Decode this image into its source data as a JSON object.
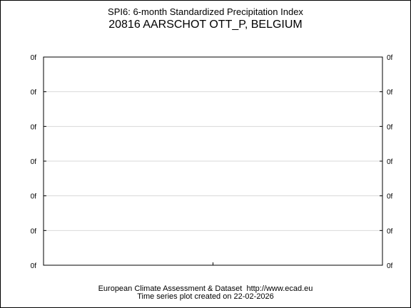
{
  "chart_data": {
    "type": "line",
    "title": "SPI6: 6-month Standardized Precipitation Index",
    "subtitle": "20816 AARSCHOT OTT_P, BELGIUM",
    "xlabel": "",
    "ylabel": "",
    "x": [],
    "series": [],
    "y_ticks": [
      "0f",
      "0f",
      "0f",
      "0f",
      "0f",
      "0f",
      "0f"
    ],
    "y_ticks_right": [
      "0f",
      "0f",
      "0f",
      "0f",
      "0f",
      "0f",
      "0f"
    ],
    "grid": true,
    "legend": "none"
  },
  "footer": {
    "line1": "European Climate Assessment & Dataset  http://www.ecad.eu",
    "line2": "Time series plot created on 22-02-2026"
  },
  "colors": {
    "axis": "#000000",
    "grid": "#d9d9d9",
    "background": "#ffffff"
  }
}
